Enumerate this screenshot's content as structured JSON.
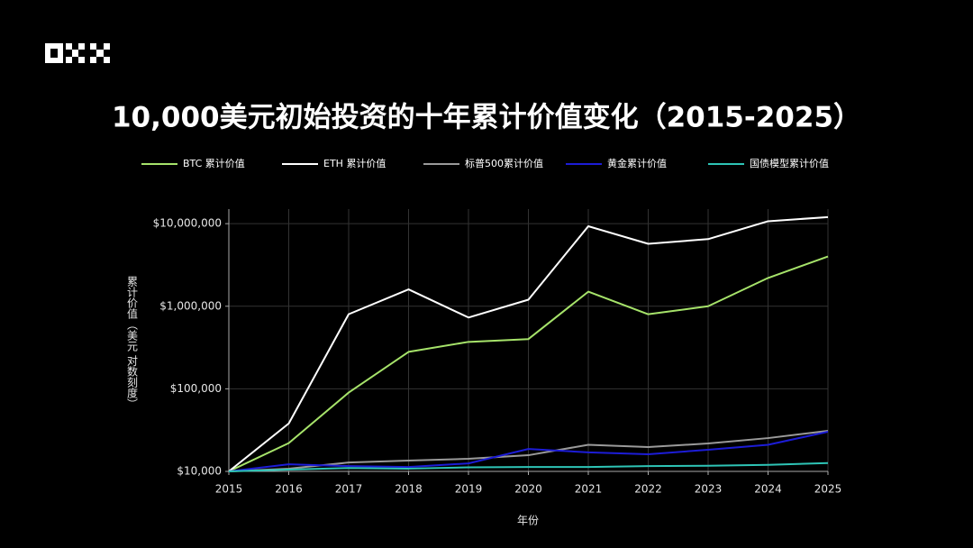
{
  "chart_data": {
    "type": "line",
    "title": "10,000美元初始投资的十年累计价值变化（2015-2025）",
    "x_label": "年份",
    "y_label": "累计价值（美元 对数刻度）",
    "x": [
      2015,
      2016,
      2017,
      2018,
      2019,
      2020,
      2021,
      2022,
      2023,
      2024,
      2025
    ],
    "xlim": [
      2015,
      2025
    ],
    "xticks": [
      2015,
      2016,
      2017,
      2018,
      2019,
      2020,
      2021,
      2022,
      2023,
      2024,
      2025
    ],
    "ylim": [
      10000,
      15000000
    ],
    "yticks": [
      {
        "value": 10000,
        "label": "$10,000"
      },
      {
        "value": 100000,
        "label": "$100,000"
      },
      {
        "value": 1000000,
        "label": "$1,000,000"
      },
      {
        "value": 10000000,
        "label": "$10,000,000"
      }
    ],
    "log_y": true,
    "grid": true,
    "series": [
      {
        "name": "BTC 累计价值",
        "color": "#a6e36a",
        "values": [
          10000,
          22000,
          90000,
          280000,
          370000,
          400000,
          1500000,
          800000,
          1000000,
          2200000,
          4000000
        ]
      },
      {
        "name": "ETH 累计价值",
        "color": "#ffffff",
        "values": [
          10000,
          38000,
          800000,
          1600000,
          730000,
          1200000,
          9300000,
          5700000,
          6500000,
          10700000,
          12000000
        ]
      },
      {
        "name": "标普500累计价值",
        "color": "#9a9a9a",
        "values": [
          10000,
          10800,
          12800,
          13500,
          14200,
          15700,
          21000,
          19700,
          21800,
          25300,
          31000
        ]
      },
      {
        "name": "黄金累计价值",
        "color": "#1c1cd6",
        "values": [
          10000,
          12200,
          11600,
          11300,
          12500,
          18700,
          17000,
          16100,
          18300,
          21000,
          30200
        ]
      },
      {
        "name": "国债模型累计价值",
        "color": "#2ec4b6",
        "values": [
          10000,
          10500,
          11000,
          10800,
          11200,
          11300,
          11300,
          11600,
          11700,
          12000,
          12600
        ]
      }
    ]
  }
}
